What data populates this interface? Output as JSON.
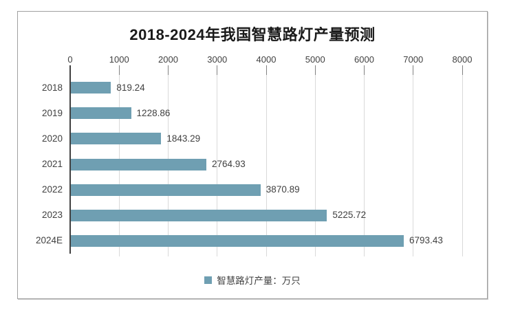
{
  "chart_data": {
    "type": "bar",
    "orientation": "horizontal",
    "title": "2018-2024年我国智慧路灯产量预测",
    "categories": [
      "2018",
      "2019",
      "2020",
      "2021",
      "2022",
      "2023",
      "2024E"
    ],
    "series": [
      {
        "name": "智慧路灯产量：万只",
        "values": [
          819.24,
          1228.86,
          1843.29,
          2764.93,
          3870.89,
          5225.72,
          6793.43
        ]
      }
    ],
    "value_labels": [
      "819.24",
      "1228.86",
      "1843.29",
      "2764.93",
      "3870.89",
      "5225.72",
      "6793.43"
    ],
    "xlim": [
      0,
      8000
    ],
    "x_ticks": [
      0,
      1000,
      2000,
      3000,
      4000,
      5000,
      6000,
      7000,
      8000
    ],
    "x_axis_position": "top",
    "grid": "vertical",
    "legend_position": "bottom",
    "legend": {
      "marker": "square",
      "label": "智慧路灯产量：万只"
    },
    "colors": {
      "bar": "#6F9FB2",
      "axis_line": "#404040",
      "tick_mark": "#808080",
      "gridline": "#d9d9d9",
      "text": "#404040",
      "title": "#1a1a1a",
      "frame_border": "#9f9f9f",
      "background": "#ffffff"
    }
  }
}
